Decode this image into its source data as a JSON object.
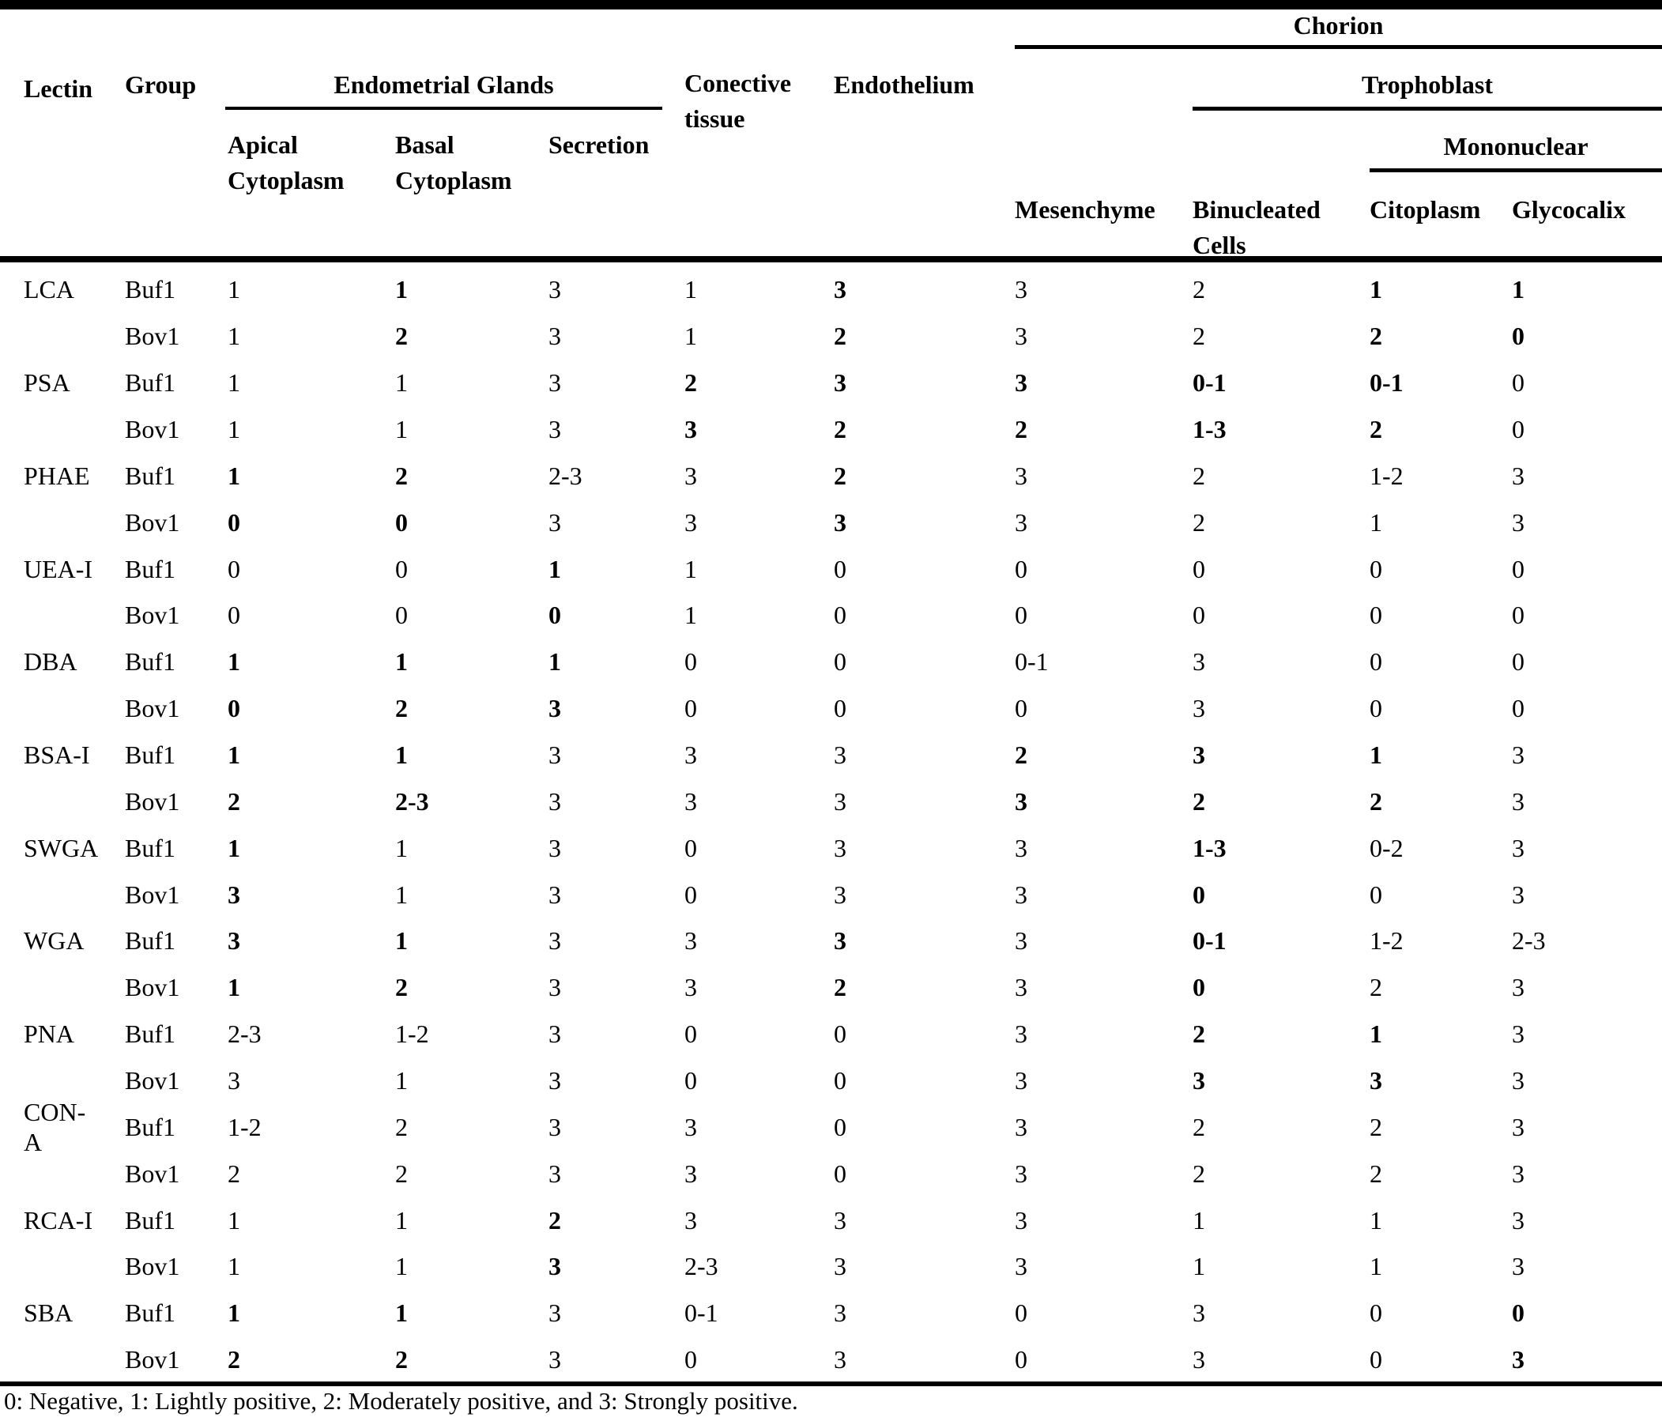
{
  "table": {
    "headers": {
      "lectin": "Lectin",
      "group": "Group",
      "endometrial_glands": "Endometrial Glands",
      "apical_cytoplasm": "Apical Cytoplasm",
      "basal_cytoplasm": "Basal Cytoplasm",
      "secretion": "Secretion",
      "conective_tissue": "Conective tissue",
      "endothelium": "Endothelium",
      "chorion": "Chorion",
      "mesenchyme": "Mesenchyme",
      "trophoblast": "Trophoblast",
      "binucleated_cells": "Binucleated Cells",
      "mononuclear": "Mononuclear",
      "citoplasm": "Citoplasm",
      "glycocalix": "Glycocalix"
    },
    "value_columns": [
      "Apical Cytoplasm",
      "Basal Cytoplasm",
      "Secretion",
      "Conective tissue",
      "Endothelium",
      "Mesenchyme",
      "Binucleated Cells",
      "Citoplasm",
      "Glycocalix"
    ],
    "rows": [
      {
        "lectin": "LCA",
        "group": "Buf1",
        "values": [
          "1",
          "1",
          "3",
          "1",
          "3",
          "3",
          "2",
          "1",
          "1"
        ],
        "bold": [
          false,
          true,
          false,
          false,
          true,
          false,
          false,
          true,
          true
        ]
      },
      {
        "lectin": "",
        "group": "Bov1",
        "values": [
          "1",
          "2",
          "3",
          "1",
          "2",
          "3",
          "2",
          "2",
          "0"
        ],
        "bold": [
          false,
          true,
          false,
          false,
          true,
          false,
          false,
          true,
          true
        ]
      },
      {
        "lectin": "PSA",
        "group": "Buf1",
        "values": [
          "1",
          "1",
          "3",
          "2",
          "3",
          "3",
          "0-1",
          "0-1",
          "0"
        ],
        "bold": [
          false,
          false,
          false,
          true,
          true,
          true,
          true,
          true,
          false
        ]
      },
      {
        "lectin": "",
        "group": "Bov1",
        "values": [
          "1",
          "1",
          "3",
          "3",
          "2",
          "2",
          "1-3",
          "2",
          "0"
        ],
        "bold": [
          false,
          false,
          false,
          true,
          true,
          true,
          true,
          true,
          false
        ]
      },
      {
        "lectin": "PHAE",
        "group": "Buf1",
        "values": [
          "1",
          "2",
          "2-3",
          "3",
          "2",
          "3",
          "2",
          "1-2",
          "3"
        ],
        "bold": [
          true,
          true,
          false,
          false,
          true,
          false,
          false,
          false,
          false
        ]
      },
      {
        "lectin": "",
        "group": "Bov1",
        "values": [
          "0",
          "0",
          "3",
          "3",
          "3",
          "3",
          "2",
          "1",
          "3"
        ],
        "bold": [
          true,
          true,
          false,
          false,
          true,
          false,
          false,
          false,
          false
        ]
      },
      {
        "lectin": "UEA-I",
        "group": "Buf1",
        "values": [
          "0",
          "0",
          "1",
          "1",
          "0",
          "0",
          "0",
          "0",
          "0"
        ],
        "bold": [
          false,
          false,
          true,
          false,
          false,
          false,
          false,
          false,
          false
        ]
      },
      {
        "lectin": "",
        "group": "Bov1",
        "values": [
          "0",
          "0",
          "0",
          "1",
          "0",
          "0",
          "0",
          "0",
          "0"
        ],
        "bold": [
          false,
          false,
          true,
          false,
          false,
          false,
          false,
          false,
          false
        ]
      },
      {
        "lectin": "DBA",
        "group": "Buf1",
        "values": [
          "1",
          "1",
          "1",
          "0",
          "0",
          "0-1",
          "3",
          "0",
          "0"
        ],
        "bold": [
          true,
          true,
          true,
          false,
          false,
          false,
          false,
          false,
          false
        ]
      },
      {
        "lectin": "",
        "group": "Bov1",
        "values": [
          "0",
          "2",
          "3",
          "0",
          "0",
          "0",
          "3",
          "0",
          "0"
        ],
        "bold": [
          true,
          true,
          true,
          false,
          false,
          false,
          false,
          false,
          false
        ]
      },
      {
        "lectin": "BSA-I",
        "group": "Buf1",
        "values": [
          "1",
          "1",
          "3",
          "3",
          "3",
          "2",
          "3",
          "1",
          "3"
        ],
        "bold": [
          true,
          true,
          false,
          false,
          false,
          true,
          true,
          true,
          false
        ]
      },
      {
        "lectin": "",
        "group": "Bov1",
        "values": [
          "2",
          "2-3",
          "3",
          "3",
          "3",
          "3",
          "2",
          "2",
          "3"
        ],
        "bold": [
          true,
          true,
          false,
          false,
          false,
          true,
          true,
          true,
          false
        ]
      },
      {
        "lectin": "SWGA",
        "group": "Buf1",
        "values": [
          "1",
          "1",
          "3",
          "0",
          "3",
          "3",
          "1-3",
          "0-2",
          "3"
        ],
        "bold": [
          true,
          false,
          false,
          false,
          false,
          false,
          true,
          false,
          false
        ]
      },
      {
        "lectin": "",
        "group": "Bov1",
        "values": [
          "3",
          "1",
          "3",
          "0",
          "3",
          "3",
          "0",
          "0",
          "3"
        ],
        "bold": [
          true,
          false,
          false,
          false,
          false,
          false,
          true,
          false,
          false
        ]
      },
      {
        "lectin": "WGA",
        "group": "Buf1",
        "values": [
          "3",
          "1",
          "3",
          "3",
          "3",
          "3",
          "0-1",
          "1-2",
          "2-3"
        ],
        "bold": [
          true,
          true,
          false,
          false,
          true,
          false,
          true,
          false,
          false
        ]
      },
      {
        "lectin": "",
        "group": "Bov1",
        "values": [
          "1",
          "2",
          "3",
          "3",
          "2",
          "3",
          "0",
          "2",
          "3"
        ],
        "bold": [
          true,
          true,
          false,
          false,
          true,
          false,
          true,
          false,
          false
        ]
      },
      {
        "lectin": "PNA",
        "group": "Buf1",
        "values": [
          "2-3",
          "1-2",
          "3",
          "0",
          "0",
          "3",
          "2",
          "1",
          "3"
        ],
        "bold": [
          false,
          false,
          false,
          false,
          false,
          false,
          true,
          true,
          false
        ]
      },
      {
        "lectin": "",
        "group": "Bov1",
        "values": [
          "3",
          "1",
          "3",
          "0",
          "0",
          "3",
          "3",
          "3",
          "3"
        ],
        "bold": [
          false,
          false,
          false,
          false,
          false,
          false,
          true,
          true,
          false
        ]
      },
      {
        "lectin": "CON-A",
        "group": "Buf1",
        "values": [
          "1-2",
          "2",
          "3",
          "3",
          "0",
          "3",
          "2",
          "2",
          "3"
        ],
        "bold": [
          false,
          false,
          false,
          false,
          false,
          false,
          false,
          false,
          false
        ]
      },
      {
        "lectin": "",
        "group": "Bov1",
        "values": [
          "2",
          "2",
          "3",
          "3",
          "0",
          "3",
          "2",
          "2",
          "3"
        ],
        "bold": [
          false,
          false,
          false,
          false,
          false,
          false,
          false,
          false,
          false
        ]
      },
      {
        "lectin": "RCA-I",
        "group": "Buf1",
        "values": [
          "1",
          "1",
          "2",
          "3",
          "3",
          "3",
          "1",
          "1",
          "3"
        ],
        "bold": [
          false,
          false,
          true,
          false,
          false,
          false,
          false,
          false,
          false
        ]
      },
      {
        "lectin": "",
        "group": "Bov1",
        "values": [
          "1",
          "1",
          "3",
          "2-3",
          "3",
          "3",
          "1",
          "1",
          "3"
        ],
        "bold": [
          false,
          false,
          true,
          false,
          false,
          false,
          false,
          false,
          false
        ]
      },
      {
        "lectin": "SBA",
        "group": "Buf1",
        "values": [
          "1",
          "1",
          "3",
          "0-1",
          "3",
          "0",
          "3",
          "0",
          "0"
        ],
        "bold": [
          true,
          true,
          false,
          false,
          false,
          false,
          false,
          false,
          true
        ]
      },
      {
        "lectin": "",
        "group": "Bov1",
        "values": [
          "2",
          "2",
          "3",
          "0",
          "3",
          "0",
          "3",
          "0",
          "3"
        ],
        "bold": [
          true,
          true,
          false,
          false,
          false,
          false,
          false,
          false,
          true
        ]
      }
    ],
    "footnote": "0: Negative, 1: Lightly positive, 2: Moderately positive, and 3: Strongly positive."
  }
}
